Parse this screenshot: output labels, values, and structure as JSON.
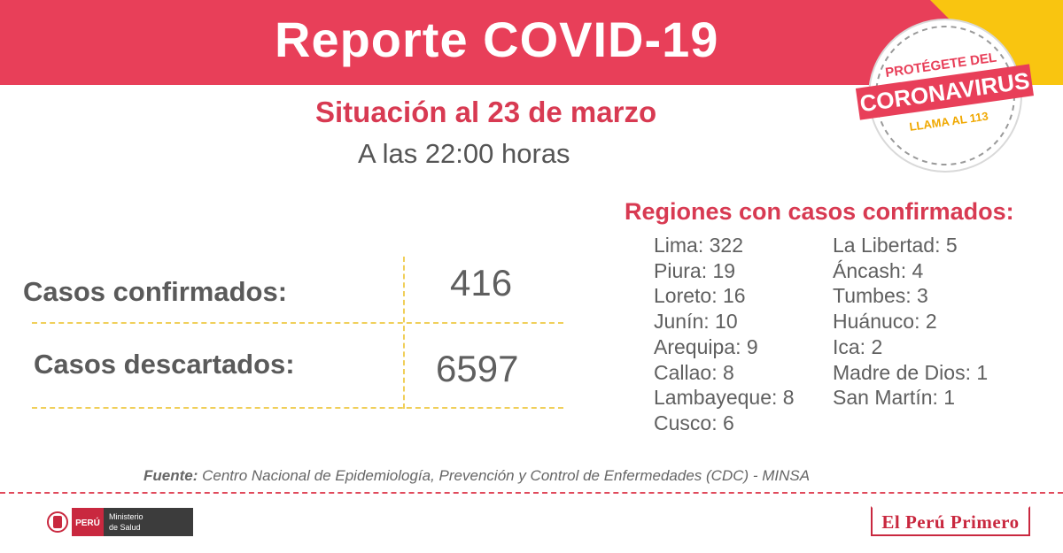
{
  "header": {
    "title": "Reporte COVID-19"
  },
  "badge": {
    "line1": "PROTÉGETE DEL",
    "line2": "CORONAVIRUS",
    "line3": "LLAMA AL 113"
  },
  "situation": {
    "title": "Situación al 23 de marzo",
    "time": "A las 22:00 horas"
  },
  "cases": {
    "confirmed_label": "Casos confirmados:",
    "confirmed_value": "416",
    "discarded_label": "Casos descartados:",
    "discarded_value": "6597"
  },
  "regions": {
    "title": "Regiones con casos confirmados:",
    "col1": [
      "Lima: 322",
      "Piura: 19",
      "Loreto: 16",
      "Junín: 10",
      "Arequipa: 9",
      "Callao: 8",
      "Lambayeque: 8",
      "Cusco: 6"
    ],
    "col2": [
      "La Libertad: 5",
      "Áncash: 4",
      "Tumbes: 3",
      "Huánuco: 2",
      "Ica: 2",
      "Madre de Dios: 1",
      "San Martín: 1"
    ]
  },
  "source": {
    "label": "Fuente:",
    "text": "Centro Nacional de Epidemiología, Prevención y Control de Enfermedades (CDC) - MINSA"
  },
  "footer": {
    "peru_label": "PERÚ",
    "ministry_line1": "Ministerio",
    "ministry_line2": "de Salud",
    "slogan": "El Perú Primero"
  },
  "colors": {
    "header_red": "#e83f59",
    "accent_yellow": "#f9c510",
    "title_red": "#d83a52",
    "text_gray": "#5f5f5f"
  }
}
